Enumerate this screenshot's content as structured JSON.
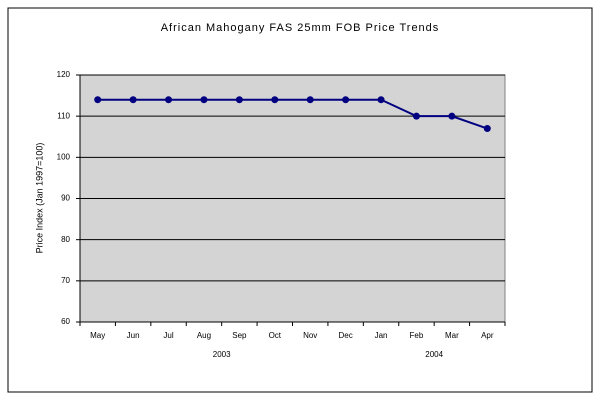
{
  "chart_data": {
    "type": "line",
    "title": "African Mahogany FAS 25mm FOB Price Trends",
    "y_label": "Price Index (Jan 1997=100)",
    "categories": [
      "May",
      "Jun",
      "Jul",
      "Aug",
      "Sep",
      "Oct",
      "Nov",
      "Dec",
      "Jan",
      "Feb",
      "Mar",
      "Apr"
    ],
    "year_groups": [
      {
        "label": "2003",
        "count": 8
      },
      {
        "label": "2004",
        "count": 4
      }
    ],
    "series": [
      {
        "name": "Price Index",
        "color": "#000080",
        "values": [
          114,
          114,
          114,
          114,
          114,
          114,
          114,
          114,
          114,
          110,
          110,
          107
        ]
      }
    ],
    "ylim": [
      60,
      120
    ],
    "yticks": [
      60,
      70,
      80,
      90,
      100,
      110,
      120
    ],
    "grid": true,
    "plot_background": "#d4d4d4"
  }
}
